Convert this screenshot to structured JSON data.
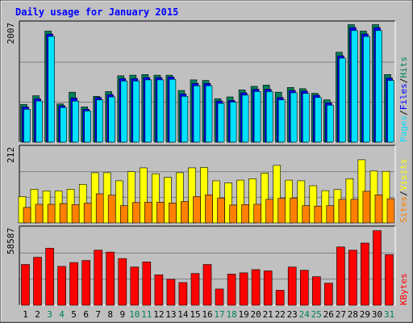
{
  "chart_data": {
    "type": "bar",
    "title": "Daily usage for January 2015",
    "categories": [
      "1",
      "2",
      "3",
      "4",
      "5",
      "6",
      "7",
      "8",
      "9",
      "10",
      "11",
      "12",
      "13",
      "14",
      "15",
      "16",
      "17",
      "18",
      "19",
      "20",
      "21",
      "22",
      "23",
      "24",
      "25",
      "26",
      "27",
      "28",
      "29",
      "30",
      "31"
    ],
    "weekend_days": [
      "3",
      "4",
      "10",
      "11",
      "17",
      "18",
      "24",
      "25",
      "31"
    ],
    "grid": true,
    "panels": [
      {
        "id": "hits-files-pages",
        "ymax_label": "2007",
        "ylim": [
          0,
          2007
        ],
        "series": [
          {
            "name": "Hits",
            "color": "#00805c",
            "values": [
              640,
              790,
              1890,
              650,
              850,
              600,
              780,
              860,
              1130,
              1140,
              1150,
              1140,
              1140,
              880,
              1060,
              1050,
              740,
              770,
              890,
              950,
              970,
              850,
              930,
              910,
              830,
              720,
              1530,
              2000,
              1890,
              2000,
              1150
            ]
          },
          {
            "name": "Files",
            "color": "#0000ff",
            "values": [
              600,
              740,
              1840,
              620,
              750,
              560,
              760,
              810,
              1080,
              1080,
              1100,
              1100,
              1110,
              820,
              1000,
              1000,
              700,
              710,
              840,
              900,
              900,
              760,
              880,
              870,
              800,
              670,
              1470,
              1950,
              1840,
              1950,
              1090
            ]
          },
          {
            "name": "Pages",
            "color": "#00e0ff",
            "values": [
              560,
              700,
              1800,
              590,
              700,
              530,
              720,
              770,
              1040,
              1040,
              1060,
              1060,
              1070,
              780,
              960,
              960,
              660,
              680,
              800,
              860,
              860,
              720,
              840,
              830,
              760,
              630,
              1430,
              1900,
              1800,
              1900,
              1050
            ]
          }
        ]
      },
      {
        "id": "visits-sites",
        "ymax_label": "212",
        "ylim": [
          0,
          212
        ],
        "series": [
          {
            "name": "Visits",
            "color": "#ffff00",
            "values": [
              75,
              96,
              91,
              91,
              96,
              110,
              143,
              143,
              120,
              146,
              157,
              140,
              130,
              143,
              157,
              158,
              120,
              114,
              122,
              126,
              142,
              164,
              122,
              120,
              106,
              92,
              95,
              126,
              180,
              148,
              147
            ]
          },
          {
            "name": "Sites",
            "color": "#ff8000",
            "values": [
              44,
              53,
              53,
              55,
              52,
              56,
              83,
              79,
              49,
              58,
              59,
              59,
              57,
              61,
              75,
              80,
              71,
              51,
              52,
              53,
              67,
              70,
              71,
              49,
              48,
              49,
              67,
              67,
              90,
              80,
              69
            ]
          }
        ]
      },
      {
        "id": "kbytes",
        "ymax_label": "58587",
        "ylim": [
          0,
          58587
        ],
        "series": [
          {
            "name": "KBytes",
            "color": "#ff0000",
            "values": [
              31500,
              37000,
              44000,
              30000,
              33000,
              34500,
              42500,
              41000,
              36000,
              29500,
              33500,
              23500,
              20000,
              17500,
              24500,
              31500,
              12500,
              24000,
              25000,
              27500,
              26500,
              11500,
              29500,
              27000,
              22000,
              17000,
              45000,
              42500,
              48000,
              57500,
              39000
            ]
          }
        ]
      }
    ],
    "legend": {
      "panel1": [
        "Pages",
        "/",
        "Files",
        "/",
        "Hits"
      ],
      "panel2": [
        "Sites",
        "/",
        "Visits"
      ],
      "panel3": [
        "KBytes"
      ]
    }
  },
  "colors": {
    "background": "#c0c0c0",
    "plot_bg": "#c0c0c0",
    "title": "#0000ff",
    "weekday_label": "#000000",
    "weekend_label": "#00805c"
  }
}
